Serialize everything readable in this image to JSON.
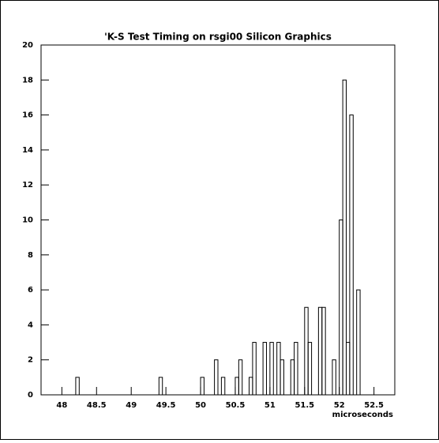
{
  "chart_data": {
    "type": "histogram",
    "title": "'K-S Test Timing on rsgi00 Silicon Graphics",
    "x_label": "microseconds",
    "bins": [
      47.7,
      47.75,
      47.8,
      47.85,
      47.9,
      47.95,
      48,
      48.05,
      48.1,
      48.15,
      48.2,
      48.25,
      48.3,
      48.35,
      48.4,
      48.45,
      48.5,
      48.55,
      48.6,
      48.65,
      48.7,
      48.75,
      48.8,
      48.85,
      48.9,
      48.95,
      49,
      49.05,
      49.1,
      49.15,
      49.2,
      49.25,
      49.3,
      49.35,
      49.4,
      49.45,
      49.5,
      49.55,
      49.6,
      49.65,
      49.7,
      49.75,
      49.8,
      49.85,
      49.9,
      49.95,
      50,
      50.05,
      50.1,
      50.15,
      50.2,
      50.25,
      50.3,
      50.35,
      50.4,
      50.45,
      50.5,
      50.55,
      50.6,
      50.65,
      50.7,
      50.75,
      50.8,
      50.85,
      50.9,
      50.95,
      51,
      51.05,
      51.1,
      51.15,
      51.2,
      51.25,
      51.3,
      51.35,
      51.4,
      51.45,
      51.5,
      51.55,
      51.6,
      51.65,
      51.7,
      51.75,
      51.8,
      51.85,
      51.9,
      51.95,
      52,
      52.05,
      52.1,
      52.15,
      52.2,
      52.25,
      52.3,
      52.35,
      52.4,
      52.45,
      52.5,
      52.55,
      52.6,
      52.65,
      52.7,
      52.75,
      52.8
    ],
    "values": [
      0,
      0,
      0,
      0,
      0,
      0,
      0,
      0,
      0,
      0,
      1,
      0,
      0,
      0,
      0,
      0,
      0,
      0,
      0,
      0,
      0,
      0,
      0,
      0,
      0,
      0,
      0,
      0,
      0,
      0,
      0,
      0,
      0,
      0,
      1,
      0,
      0,
      0,
      0,
      0,
      0,
      0,
      0,
      0,
      0,
      0,
      1,
      0,
      0,
      0,
      2,
      0,
      1,
      0,
      0,
      0,
      1,
      2,
      0,
      0,
      1,
      3,
      0,
      0,
      3,
      0,
      3,
      0,
      3,
      2,
      0,
      0,
      2,
      3,
      0,
      0,
      5,
      3,
      0,
      0,
      5,
      5,
      0,
      0,
      2,
      0,
      10,
      18,
      3,
      16,
      0,
      6,
      0,
      0,
      0,
      0,
      0,
      0,
      0,
      0,
      0,
      0
    ],
    "color": "#000000",
    "xlim": [
      47.7,
      52.8
    ],
    "ylim": [
      0,
      20
    ],
    "xticks": [
      48,
      48.5,
      49,
      49.5,
      50,
      50.5,
      51,
      51.5,
      52,
      52.5
    ],
    "yticks": [
      0,
      2,
      4,
      6,
      8,
      10,
      12,
      14,
      16,
      18,
      20
    ]
  }
}
